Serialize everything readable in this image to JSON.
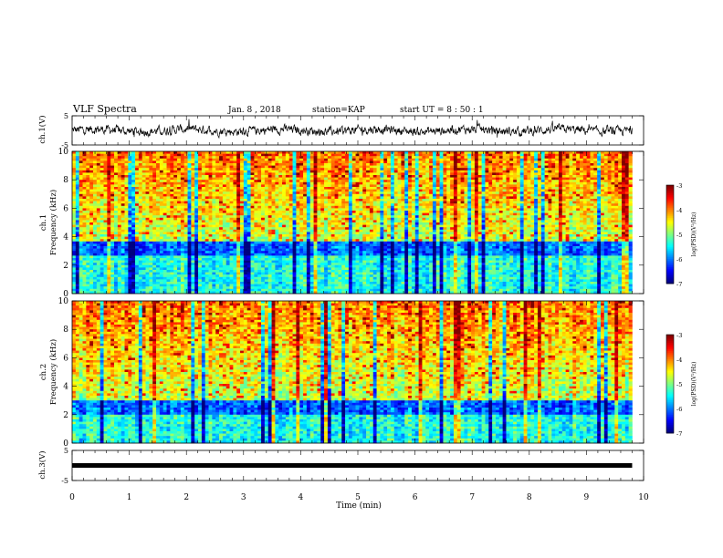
{
  "header": {
    "title": "VLF Spectra",
    "date": "Jan. 8 , 2018",
    "station": "station=KAP",
    "start": "start UT = 8 : 50 : 1"
  },
  "chart_data": [
    {
      "type": "line",
      "panel": "ch1-waveform",
      "ylabel": "ch.1(V)",
      "ylim": [
        -5,
        5
      ],
      "yticks": [
        "5",
        "-5"
      ],
      "xlim": [
        0,
        10
      ],
      "series_color": "#000000",
      "noise_amplitude": 1.2,
      "data_end_x": 9.8
    },
    {
      "type": "heatmap",
      "panel": "ch1-spectrogram",
      "ylabel": "ch.1\nFrequency (kHz)",
      "ylim": [
        0,
        10
      ],
      "yticks": [
        "0",
        "2",
        "4",
        "6",
        "8",
        "10"
      ],
      "xlim": [
        0,
        10
      ],
      "data_end_x": 9.8,
      "colorbar": {
        "label": "log(PSD)(V²/Hz)",
        "range": [
          -7,
          -3
        ],
        "ticks": [
          "-3",
          "-4",
          "-5",
          "-6",
          "-7"
        ]
      },
      "blue_band_khz": [
        2.7,
        3.6
      ]
    },
    {
      "type": "heatmap",
      "panel": "ch2-spectrogram",
      "ylabel": "ch.2\nFrequency (kHz)",
      "ylim": [
        0,
        10
      ],
      "yticks": [
        "0",
        "2",
        "4",
        "6",
        "8",
        "10"
      ],
      "xlim": [
        0,
        10
      ],
      "data_end_x": 9.8,
      "colorbar": {
        "label": "log(PSD)(V²/Hz)",
        "range": [
          -7,
          -3
        ],
        "ticks": [
          "-3",
          "-4",
          "-5",
          "-6",
          "-7"
        ]
      },
      "blue_band_khz": [
        2.0,
        3.0
      ]
    },
    {
      "type": "line",
      "panel": "ch3-waveform",
      "ylabel": "ch.3(V)",
      "ylim": [
        -5,
        5
      ],
      "yticks": [
        "5",
        "-5"
      ],
      "xlim": [
        0,
        10
      ],
      "constant_value": 0,
      "data_end_x": 9.8,
      "series_color": "#000000",
      "xlabel": "Time (min)",
      "xticks": [
        "0",
        "1",
        "2",
        "3",
        "4",
        "5",
        "6",
        "7",
        "8",
        "9",
        "10"
      ]
    }
  ]
}
